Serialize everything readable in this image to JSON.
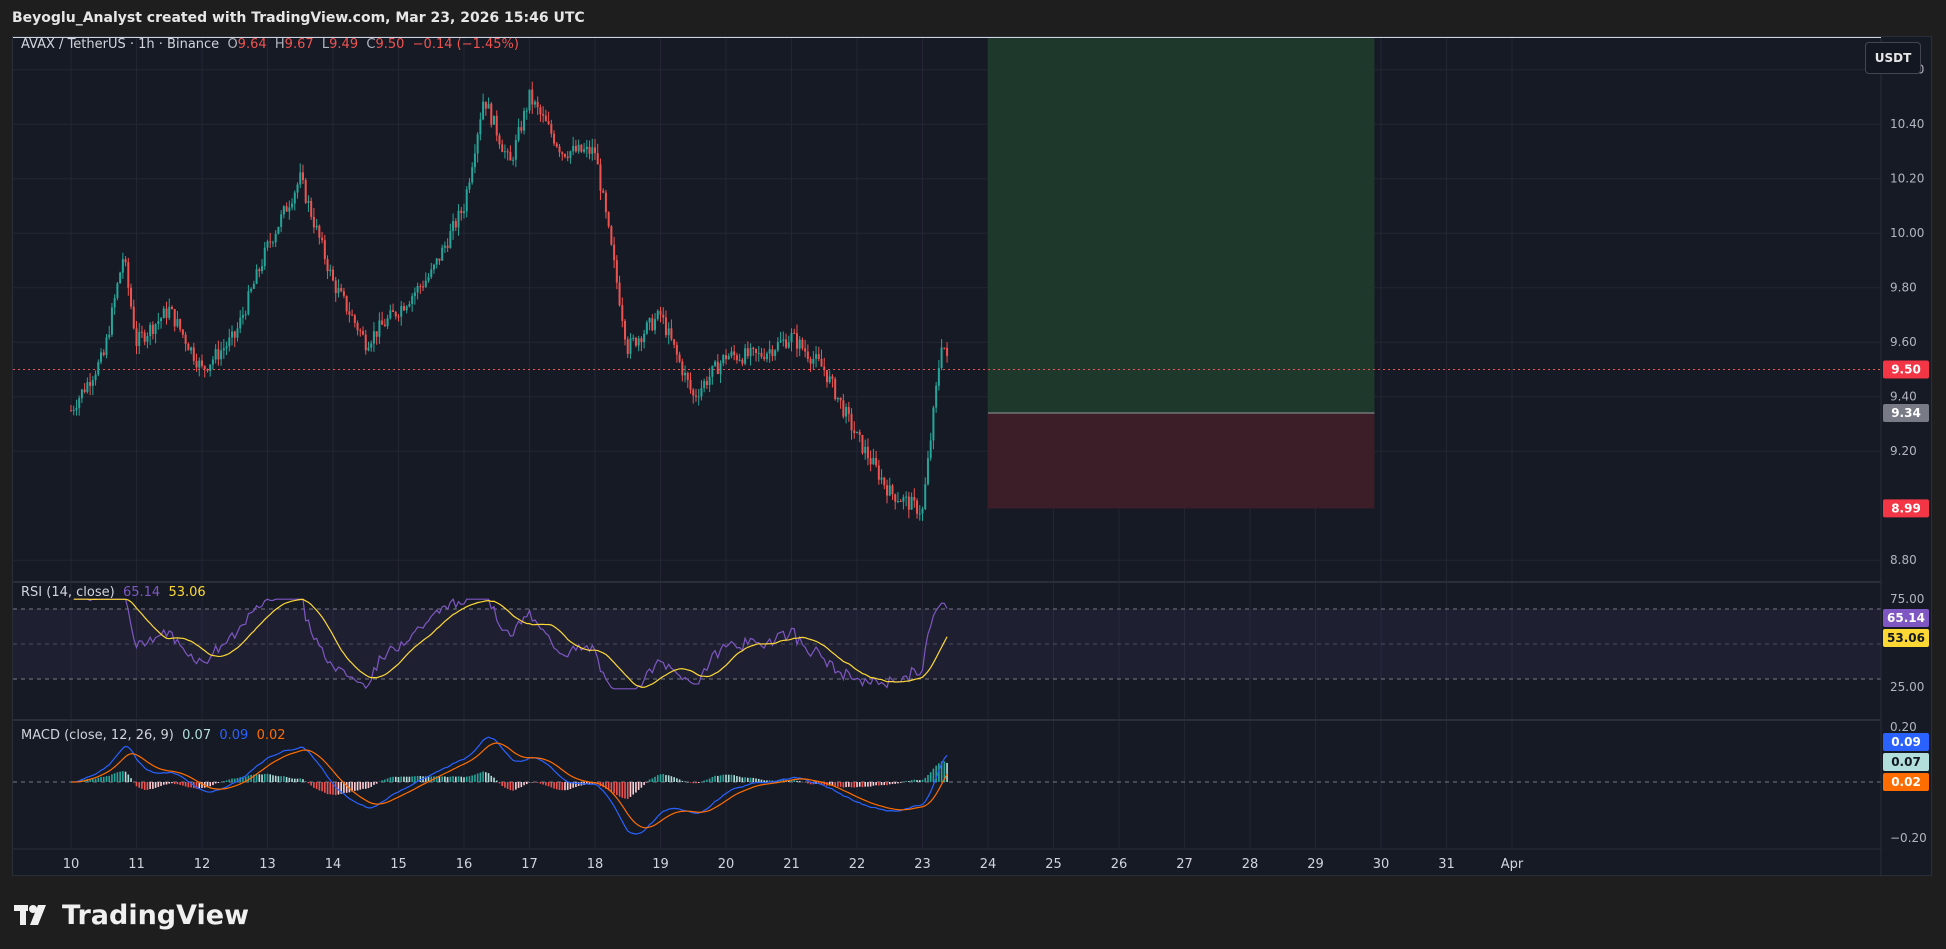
{
  "header": {
    "caption": "Beyoglu_Analyst created with TradingView.com, Mar 23, 2026 15:46 UTC"
  },
  "symbol": {
    "title": "AVAX / TetherUS · 1h · Binance",
    "open_label": "O",
    "open": "9.64",
    "high_label": "H",
    "high": "9.67",
    "low_label": "L",
    "low": "9.49",
    "close_label": "C",
    "close": "9.50",
    "change": "−0.14 (−1.45%)"
  },
  "currency_button": "USDT",
  "price_axis": {
    "ticks": [
      "10.60",
      "10.40",
      "10.20",
      "10.00",
      "9.80",
      "9.60",
      "9.40",
      "9.20",
      "8.80"
    ],
    "tick_values": [
      10.6,
      10.4,
      10.2,
      10.0,
      9.8,
      9.6,
      9.4,
      9.2,
      8.8
    ],
    "current_price_label": "9.50",
    "entry_label": "9.34",
    "stop_label": "8.99"
  },
  "position": {
    "target": 10.72,
    "entry": 9.34,
    "stop": 8.99
  },
  "rsi": {
    "title": "RSI (14, close)",
    "value": "65.14",
    "ma_value": "53.06",
    "levels": [
      "75.00",
      "25.00"
    ]
  },
  "macd": {
    "title": "MACD (close, 12, 26, 9)",
    "hist_value": "0.07",
    "macd_value": "0.09",
    "signal_value": "0.02",
    "levels": [
      "0.20",
      "−0.20"
    ]
  },
  "time_axis": [
    "10",
    "11",
    "12",
    "13",
    "14",
    "15",
    "16",
    "17",
    "18",
    "19",
    "20",
    "21",
    "22",
    "23",
    "24",
    "25",
    "26",
    "27",
    "28",
    "29",
    "30",
    "31",
    "Apr"
  ],
  "colors": {
    "up": "#26a69a",
    "down": "#ef5350",
    "rsi": "#7e57c2",
    "rsi_ma": "#fdd835",
    "macd": "#2962ff",
    "signal": "#ff6d00",
    "profit_zone": "#1f3a2c",
    "loss_zone": "#3d1f27"
  },
  "brand": {
    "name": "TradingView",
    "icon": "tradingview-logo-icon"
  },
  "chart_data": {
    "type": "candlestick",
    "title": "AVAX / TetherUS · 1h · Binance",
    "x_axis_days": [
      "10",
      "11",
      "12",
      "13",
      "14",
      "15",
      "16",
      "17",
      "18",
      "19",
      "20",
      "21",
      "22",
      "23"
    ],
    "approx_close_path": [
      {
        "day": "10",
        "value": 9.35
      },
      {
        "day": "10.5",
        "value": 9.55
      },
      {
        "day": "10.8",
        "value": 9.92
      },
      {
        "day": "11",
        "value": 9.6
      },
      {
        "day": "11.5",
        "value": 9.72
      },
      {
        "day": "12",
        "value": 9.5
      },
      {
        "day": "12.5",
        "value": 9.62
      },
      {
        "day": "13",
        "value": 9.95
      },
      {
        "day": "13.5",
        "value": 10.2
      },
      {
        "day": "14",
        "value": 9.82
      },
      {
        "day": "14.5",
        "value": 9.6
      },
      {
        "day": "15",
        "value": 9.72
      },
      {
        "day": "15.5",
        "value": 9.85
      },
      {
        "day": "16",
        "value": 10.1
      },
      {
        "day": "16.3",
        "value": 10.5
      },
      {
        "day": "16.7",
        "value": 10.25
      },
      {
        "day": "17",
        "value": 10.5
      },
      {
        "day": "17.5",
        "value": 10.3
      },
      {
        "day": "18",
        "value": 10.3
      },
      {
        "day": "18.5",
        "value": 9.58
      },
      {
        "day": "19",
        "value": 9.7
      },
      {
        "day": "19.5",
        "value": 9.4
      },
      {
        "day": "20",
        "value": 9.55
      },
      {
        "day": "20.5",
        "value": 9.55
      },
      {
        "day": "21",
        "value": 9.62
      },
      {
        "day": "21.5",
        "value": 9.5
      },
      {
        "day": "22",
        "value": 9.25
      },
      {
        "day": "22.5",
        "value": 9.05
      },
      {
        "day": "23",
        "value": 8.98
      },
      {
        "day": "23.3",
        "value": 9.62
      },
      {
        "day": "23.4",
        "value": 9.5
      }
    ],
    "ylim": [
      8.72,
      10.72
    ],
    "rsi_levels": [
      75,
      25
    ],
    "macd_range": [
      -0.2,
      0.2
    ]
  }
}
